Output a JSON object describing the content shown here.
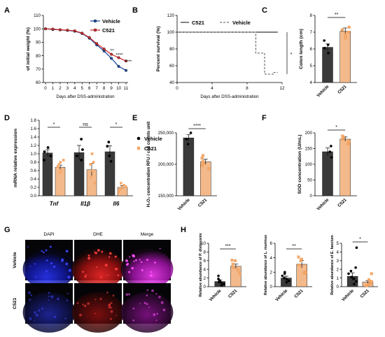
{
  "colors": {
    "vehicle": "#3a3a3a",
    "c521": "#f4b98a",
    "lineVehicle": "#1f4e9e",
    "lineC521": "#d32f2f",
    "dapi": "#1a22c8",
    "dhe": "#c81818",
    "merge": "#c018c8"
  },
  "chart_data": [
    {
      "panel": "A",
      "type": "line",
      "ylabel": "of initial weight (%)",
      "xlabel": "Days after DSS-administration",
      "x": [
        0,
        1,
        2,
        3,
        4,
        5,
        6,
        7,
        8,
        9,
        10,
        11
      ],
      "xticks": [
        "0",
        "1",
        "2",
        "3",
        "4",
        "5",
        "6",
        "7",
        "8",
        "9",
        "10",
        "11"
      ],
      "ylim": [
        60,
        110
      ],
      "yticks": [
        "60",
        "70",
        "80",
        "90",
        "100",
        "110"
      ],
      "legend": "top-right",
      "series": [
        {
          "name": "Vehicle",
          "values": [
            100,
            99.5,
            99.2,
            98.8,
            98.2,
            96.5,
            93,
            88,
            83.5,
            78,
            72,
            69
          ]
        },
        {
          "name": "C521",
          "values": [
            100,
            99.8,
            99.3,
            99,
            98.5,
            96.8,
            93.5,
            89,
            85,
            81,
            78.5,
            76
          ]
        }
      ],
      "annotations": [
        "**",
        "****",
        "****"
      ]
    },
    {
      "panel": "B",
      "type": "line",
      "ylabel": "Percent survival (%)",
      "xlabel": "Days after DSS-administration",
      "xlim": [
        0,
        12
      ],
      "xticks": [
        "0",
        "4",
        "8",
        "12"
      ],
      "ylim": [
        40,
        120
      ],
      "yticks": [
        "40",
        "60",
        "80",
        "100",
        "120"
      ],
      "legend": "top",
      "series": [
        {
          "name": "C521",
          "x": [
            0,
            11.5
          ],
          "values": [
            100,
            100
          ]
        },
        {
          "name": "Vehicle",
          "x": [
            0,
            9,
            9,
            10,
            10,
            11,
            11,
            11.5
          ],
          "values": [
            100,
            100,
            75,
            75,
            50,
            50,
            52,
            52
          ]
        }
      ],
      "annotations": [
        "*"
      ]
    },
    {
      "panel": "C",
      "type": "bar",
      "ylabel": "Colon length (cm)",
      "categories": [
        "Vehicle",
        "C521"
      ],
      "values": [
        6.1,
        7.05
      ],
      "errors": [
        0.2,
        0.2
      ],
      "points": [
        [
          5.75,
          6.05,
          6.25,
          6.5
        ],
        [
          6.65,
          6.85,
          7.0,
          7.15,
          7.3
        ]
      ],
      "ylim": [
        4,
        8
      ],
      "yticks": [
        "4",
        "5",
        "6",
        "7",
        "8"
      ],
      "annotations": [
        "**"
      ]
    },
    {
      "panel": "D",
      "type": "bar",
      "ylabel": "mRNA relative expression",
      "categories": [
        "Tnf",
        "Il1β",
        "Il6"
      ],
      "ylim": [
        0,
        1.8
      ],
      "yticks": [
        "0.0",
        "0.2",
        "0.4",
        "0.6",
        "0.8",
        "1.0",
        "1.2",
        "1.4",
        "1.6",
        "1.8"
      ],
      "legend": "right",
      "series": [
        {
          "name": "Vehicle",
          "values": [
            1.02,
            1.03,
            1.05
          ],
          "errors": [
            0.08,
            0.17,
            0.14
          ],
          "points": [
            [
              0.85,
              0.95,
              1.05,
              1.15
            ],
            [
              0.85,
              0.95,
              1.1,
              1.35
            ],
            [
              0.82,
              0.95,
              1.18,
              1.28
            ]
          ]
        },
        {
          "name": "C521",
          "values": [
            0.68,
            0.62,
            0.2
          ],
          "errors": [
            0.05,
            0.15,
            0.04
          ],
          "points": [
            [
              0.55,
              0.6,
              0.7,
              0.75,
              0.8,
              0.85
            ],
            [
              0.3,
              0.45,
              0.6,
              0.75,
              0.8,
              1.0
            ],
            [
              0.1,
              0.15,
              0.2,
              0.22,
              0.25,
              0.3
            ]
          ]
        }
      ],
      "annotations": [
        "*",
        "ns",
        "*"
      ]
    },
    {
      "panel": "E",
      "type": "bar",
      "ylabel": "H₂O₂ concentration RFU / cell counts unit",
      "categories": [
        "Vehicle",
        "C521"
      ],
      "values": [
        242000,
        204000
      ],
      "errors": [
        5000,
        4000
      ],
      "points": [
        [
          232000,
          240000,
          250000
        ],
        [
          193000,
          198000,
          202000,
          205000,
          210000,
          214000
        ]
      ],
      "ylim": [
        150000,
        250000
      ],
      "yticks": [
        "150,000",
        "200,000",
        "250,000"
      ],
      "annotations": [
        "****"
      ]
    },
    {
      "panel": "F",
      "type": "bar",
      "ylabel": "SOD concentration (U/mL)",
      "categories": [
        "Vehicle",
        "C521"
      ],
      "values": [
        140,
        180
      ],
      "errors": [
        12,
        7
      ],
      "points": [
        [
          122,
          140,
          158
        ],
        [
          165,
          172,
          180,
          186,
          190
        ]
      ],
      "ylim": [
        0,
        200
      ],
      "yticks": [
        "0",
        "50",
        "100",
        "150",
        "200"
      ],
      "annotations": [
        "*"
      ]
    },
    {
      "panel": "H1",
      "type": "bar",
      "ylabel": "Relative abundance of P. distasonis",
      "categories": [
        "Vehicle",
        "C521"
      ],
      "values": [
        1.2,
        4.7
      ],
      "errors": [
        0.3,
        0.5
      ],
      "points": [
        [
          0.3,
          0.6,
          0.9,
          1.1,
          1.4,
          1.8,
          2.5
        ],
        [
          3.0,
          3.8,
          4.5,
          5.2,
          6.0,
          6.1
        ]
      ],
      "ylim": [
        0,
        10
      ],
      "yticks": [
        "0",
        "2",
        "4",
        "6",
        "8",
        "10"
      ],
      "annotations": [
        "***"
      ]
    },
    {
      "panel": "H2",
      "type": "bar",
      "ylabel": "Relative abundance of L. murinus",
      "categories": [
        "Vehicle",
        "C521"
      ],
      "values": [
        1.2,
        3.1
      ],
      "errors": [
        0.25,
        0.5
      ],
      "points": [
        [
          0.6,
          0.8,
          1.0,
          1.2,
          1.5,
          1.8,
          2.0
        ],
        [
          1.9,
          2.0,
          3.0,
          3.6,
          3.8,
          4.1
        ]
      ],
      "ylim": [
        0,
        6
      ],
      "yticks": [
        "0",
        "2",
        "4",
        "6"
      ],
      "annotations": [
        "**"
      ]
    },
    {
      "panel": "H3",
      "type": "bar",
      "ylabel": "Relative abundance of E. faecium",
      "categories": [
        "Vehicle",
        "C521"
      ],
      "values": [
        1.2,
        0.55
      ],
      "errors": [
        0.4,
        0.15
      ],
      "points": [
        [
          0.3,
          0.6,
          0.9,
          1.1,
          1.5,
          1.8,
          2.2,
          4.5
        ],
        [
          0.1,
          0.25,
          0.4,
          0.5,
          0.6,
          0.8,
          1.5
        ]
      ],
      "ylim": [
        0,
        5
      ],
      "yticks": [
        "0",
        "1",
        "2",
        "3",
        "4",
        "5"
      ],
      "annotations": [
        "*"
      ]
    }
  ],
  "panelG": {
    "columns": [
      "DAPI",
      "DHE",
      "Merge"
    ],
    "rows": [
      "Vehicle",
      "C521"
    ]
  },
  "panelLabels": [
    "A",
    "B",
    "C",
    "D",
    "E",
    "F",
    "G",
    "H"
  ]
}
